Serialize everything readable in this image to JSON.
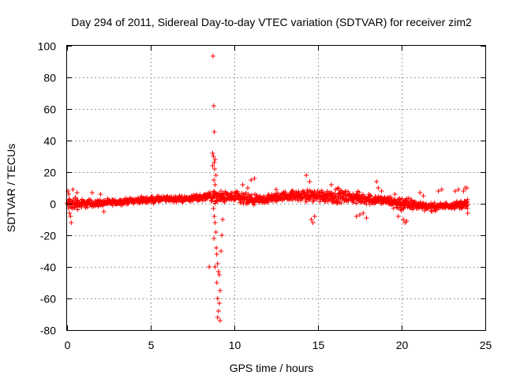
{
  "chart_data": {
    "type": "scatter",
    "title": "Day 294 of 2011, Sidereal Day-to-day VTEC variation (SDTVAR) for receiver zim2",
    "xlabel": "GPS time / hours",
    "ylabel": "SDTVAR / TECUs",
    "xlim": [
      0,
      25
    ],
    "ylim": [
      -80,
      100
    ],
    "xticks": [
      "0",
      "5",
      "10",
      "15",
      "20",
      "25"
    ],
    "yticks": [
      "-80",
      "-60",
      "-40",
      "-20",
      "0",
      "20",
      "40",
      "60",
      "80",
      "100"
    ],
    "grid": true,
    "marker": "+",
    "color": "#ff0000",
    "series": [
      {
        "name": "SDTVAR",
        "baseline": [
          [
            0.0,
            0
          ],
          [
            1.0,
            0
          ],
          [
            2.0,
            0.5
          ],
          [
            3.0,
            1
          ],
          [
            4.0,
            2
          ],
          [
            5.0,
            2.5
          ],
          [
            6.0,
            3
          ],
          [
            7.0,
            3
          ],
          [
            8.0,
            4
          ],
          [
            8.5,
            5
          ],
          [
            9.0,
            4
          ],
          [
            10.0,
            4
          ],
          [
            11.0,
            2
          ],
          [
            12.0,
            3
          ],
          [
            13.0,
            5
          ],
          [
            14.0,
            5
          ],
          [
            15.0,
            5
          ],
          [
            16.0,
            5
          ],
          [
            17.0,
            4
          ],
          [
            18.0,
            3
          ],
          [
            19.0,
            2
          ],
          [
            20.0,
            0
          ],
          [
            21.0,
            -1
          ],
          [
            22.0,
            -2
          ],
          [
            23.0,
            -1
          ],
          [
            24.0,
            0
          ]
        ],
        "spread": [
          [
            0.0,
            7
          ],
          [
            0.6,
            5
          ],
          [
            1.0,
            4
          ],
          [
            2.0,
            3
          ],
          [
            3.0,
            2.5
          ],
          [
            4.0,
            2.5
          ],
          [
            5.0,
            3
          ],
          [
            6.0,
            2.5
          ],
          [
            7.0,
            3
          ],
          [
            8.0,
            3
          ],
          [
            8.6,
            5
          ],
          [
            9.5,
            5
          ],
          [
            10.5,
            6
          ],
          [
            11.5,
            4
          ],
          [
            13.0,
            4
          ],
          [
            14.0,
            5
          ],
          [
            15.0,
            6
          ],
          [
            16.0,
            6
          ],
          [
            17.0,
            5
          ],
          [
            18.0,
            5
          ],
          [
            19.0,
            4
          ],
          [
            20.0,
            7
          ],
          [
            21.0,
            4
          ],
          [
            22.0,
            3
          ],
          [
            23.0,
            3
          ],
          [
            24.0,
            4
          ]
        ],
        "outliers": [
          [
            8.72,
            93.5
          ],
          [
            8.77,
            62
          ],
          [
            8.8,
            45.5
          ],
          [
            8.7,
            32
          ],
          [
            8.75,
            30
          ],
          [
            8.85,
            28
          ],
          [
            8.8,
            26
          ],
          [
            8.7,
            24
          ],
          [
            8.82,
            22
          ],
          [
            8.9,
            18
          ],
          [
            8.78,
            15
          ],
          [
            8.85,
            12
          ],
          [
            8.75,
            -3
          ],
          [
            8.8,
            -8
          ],
          [
            8.85,
            -12
          ],
          [
            8.9,
            -18
          ],
          [
            8.78,
            -22
          ],
          [
            8.92,
            -28
          ],
          [
            8.95,
            -32
          ],
          [
            8.85,
            -40
          ],
          [
            8.5,
            -40
          ],
          [
            9.0,
            -38
          ],
          [
            9.05,
            -43
          ],
          [
            9.1,
            -45
          ],
          [
            8.95,
            -50
          ],
          [
            9.15,
            -55
          ],
          [
            9.0,
            -60
          ],
          [
            9.1,
            -63
          ],
          [
            9.05,
            -68
          ],
          [
            9.0,
            -72
          ],
          [
            9.15,
            -74
          ],
          [
            9.2,
            -30
          ],
          [
            9.25,
            -20
          ],
          [
            9.3,
            -10
          ],
          [
            9.2,
            8
          ],
          [
            9.3,
            5
          ],
          [
            0.05,
            8
          ],
          [
            0.1,
            6
          ],
          [
            0.15,
            -6
          ],
          [
            0.2,
            -8
          ],
          [
            0.25,
            -12
          ],
          [
            0.35,
            9
          ],
          [
            0.3,
            -3
          ],
          [
            0.5,
            4
          ],
          [
            0.6,
            7
          ],
          [
            1.5,
            7
          ],
          [
            2.0,
            6
          ],
          [
            2.2,
            -5
          ],
          [
            10.5,
            12
          ],
          [
            11.0,
            15
          ],
          [
            11.2,
            16
          ],
          [
            10.8,
            10
          ],
          [
            14.3,
            18
          ],
          [
            14.5,
            14
          ],
          [
            14.6,
            -10
          ],
          [
            14.7,
            -12
          ],
          [
            14.8,
            -8
          ],
          [
            15.8,
            12
          ],
          [
            16.2,
            10
          ],
          [
            17.3,
            -8
          ],
          [
            17.5,
            -7
          ],
          [
            17.7,
            -6
          ],
          [
            17.9,
            -9
          ],
          [
            18.5,
            14
          ],
          [
            18.6,
            10
          ],
          [
            18.8,
            8
          ],
          [
            20.1,
            -10
          ],
          [
            20.2,
            -12
          ],
          [
            20.3,
            -11
          ],
          [
            21.1,
            7
          ],
          [
            21.3,
            5
          ],
          [
            22.2,
            8
          ],
          [
            22.4,
            9
          ],
          [
            23.2,
            8
          ],
          [
            23.4,
            9
          ],
          [
            23.7,
            8
          ],
          [
            23.8,
            10
          ],
          [
            23.9,
            10
          ],
          [
            23.85,
            -2
          ],
          [
            23.95,
            -6
          ],
          [
            23.6,
            -3
          ],
          [
            21.8,
            -5
          ],
          [
            22.0,
            -4
          ],
          [
            19.8,
            -8
          ],
          [
            19.6,
            6
          ],
          [
            12.5,
            9
          ],
          [
            13.5,
            8
          ]
        ]
      }
    ]
  }
}
